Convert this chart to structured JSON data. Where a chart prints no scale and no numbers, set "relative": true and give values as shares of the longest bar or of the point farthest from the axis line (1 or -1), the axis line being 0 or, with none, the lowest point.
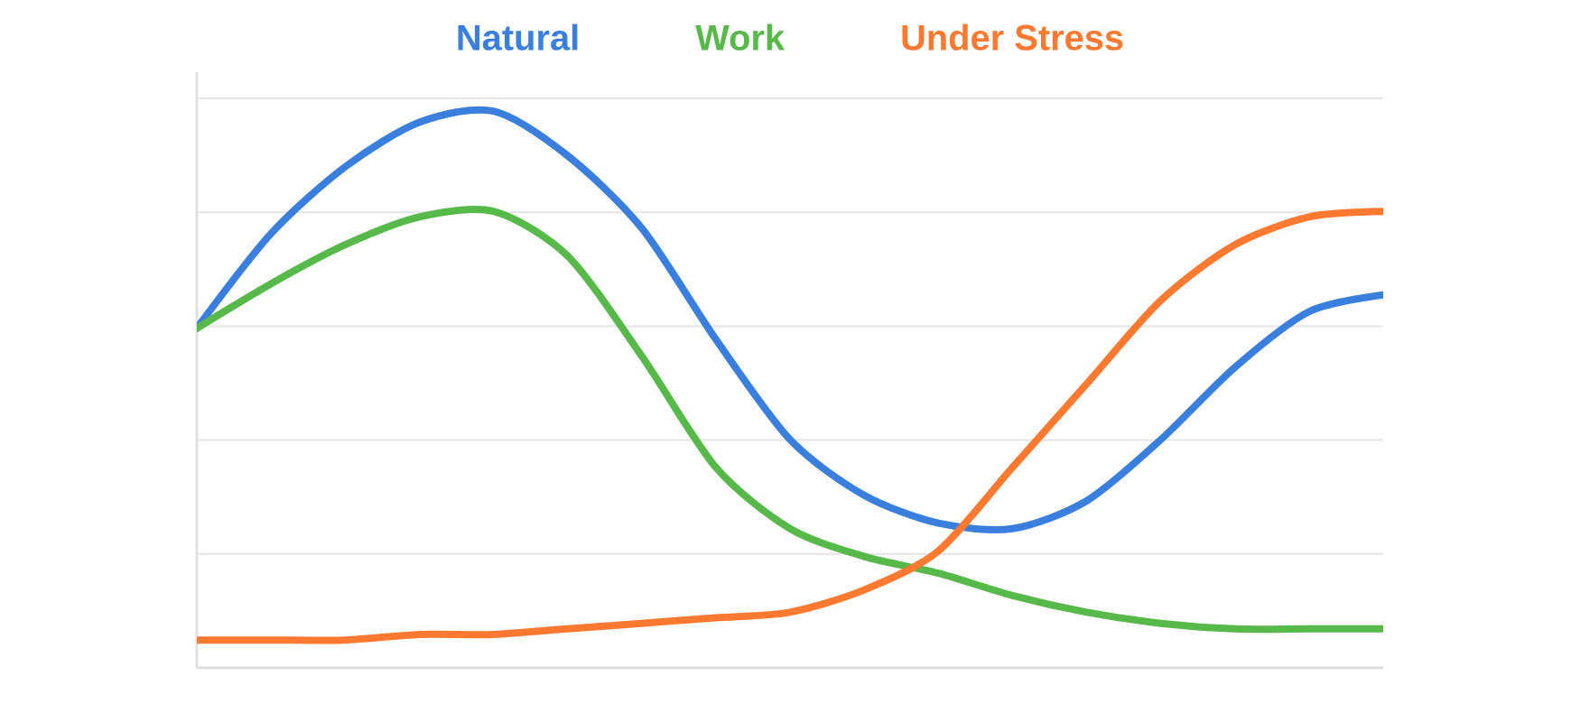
{
  "chart_data": {
    "type": "line",
    "relative": true,
    "grid": "y",
    "legend": "top",
    "categories": [
      null,
      null,
      null,
      null,
      null,
      null,
      null,
      null,
      null,
      null,
      null,
      null,
      null,
      null,
      null,
      null,
      null
    ],
    "series": [
      {
        "name": "Natural",
        "color": "#3a7fde",
        "values": [
          0.61,
          0.78,
          0.9,
          0.98,
          1.0,
          0.92,
          0.79,
          0.59,
          0.41,
          0.31,
          0.26,
          0.25,
          0.3,
          0.41,
          0.54,
          0.64,
          0.67
        ]
      },
      {
        "name": "Work",
        "color": "#56b94a",
        "values": [
          0.61,
          0.69,
          0.76,
          0.81,
          0.82,
          0.74,
          0.56,
          0.36,
          0.25,
          0.2,
          0.17,
          0.13,
          0.1,
          0.08,
          0.07,
          0.07,
          0.07
        ]
      },
      {
        "name": "Under Stress",
        "color": "#ff7a30",
        "values": [
          0.05,
          0.05,
          0.05,
          0.06,
          0.06,
          0.07,
          0.08,
          0.09,
          0.1,
          0.14,
          0.21,
          0.36,
          0.51,
          0.66,
          0.76,
          0.81,
          0.82
        ]
      }
    ]
  }
}
